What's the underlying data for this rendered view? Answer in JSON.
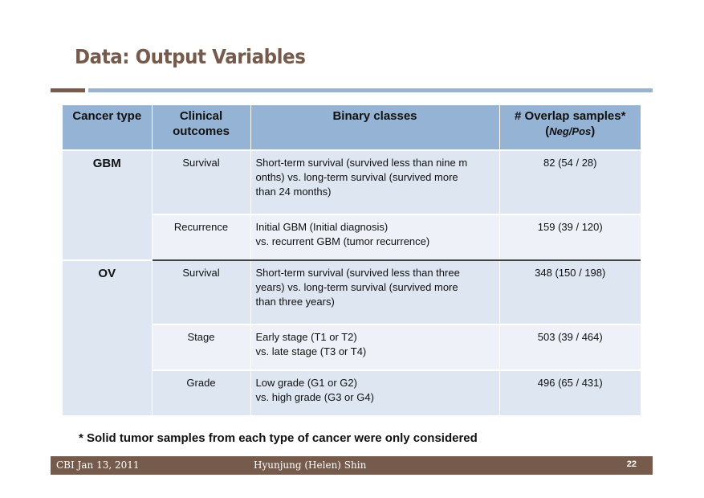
{
  "slide": {
    "title": "Data: Output Variables",
    "note": "* Solid tumor samples from each type of cancer were only considered"
  },
  "table": {
    "headers": {
      "cancer_type": "Cancer type",
      "clinical_line1": "Clinical",
      "clinical_line2": "outcomes",
      "binary": "Binary classes",
      "overlap_line1": "# Overlap samples*",
      "overlap_open": "(",
      "overlap_italic": "Neg/Pos",
      "overlap_close": ")"
    },
    "groups": [
      {
        "cancer": "GBM",
        "rows": [
          {
            "outcome": "Survival",
            "binary_line1": "Short-term survival (survived less than nine m",
            "binary_line2": "onths) vs. long-term survival (survived more",
            "binary_line3": "than 24 months)",
            "samples": "82 (54 / 28)"
          },
          {
            "outcome": "Recurrence",
            "binary_line1": "Initial GBM (Initial diagnosis)",
            "binary_line2": "vs. recurrent GBM (tumor recurrence)",
            "binary_line3": "",
            "samples": "159 (39 / 120)"
          }
        ]
      },
      {
        "cancer": "OV",
        "rows": [
          {
            "outcome": "Survival",
            "binary_line1": "Short-term survival (survived less than three",
            "binary_line2": "years) vs. long-term survival (survived more",
            "binary_line3": "than three years)",
            "samples": "348 (150 / 198)"
          },
          {
            "outcome": "Stage",
            "binary_line1": "Early stage (T1 or T2)",
            "binary_line2": "vs. late stage (T3 or T4)",
            "binary_line3": "",
            "samples": "503 (39 / 464)"
          },
          {
            "outcome": "Grade",
            "binary_line1": "Low grade (G1 or G2)",
            "binary_line2": "vs. high grade (G3 or G4)",
            "binary_line3": "",
            "samples": "496 (65 / 431)"
          }
        ]
      }
    ]
  },
  "footer": {
    "left": "CBI Jan 13, 2011",
    "center": "Hyunjung (Helen) Shin",
    "page": "22"
  },
  "colors": {
    "title": "#765a4b",
    "header_bg": "#95b3d4",
    "row_dark": "#dde6f1",
    "row_light": "#eef2f8",
    "footer_bg": "#765a4b"
  }
}
